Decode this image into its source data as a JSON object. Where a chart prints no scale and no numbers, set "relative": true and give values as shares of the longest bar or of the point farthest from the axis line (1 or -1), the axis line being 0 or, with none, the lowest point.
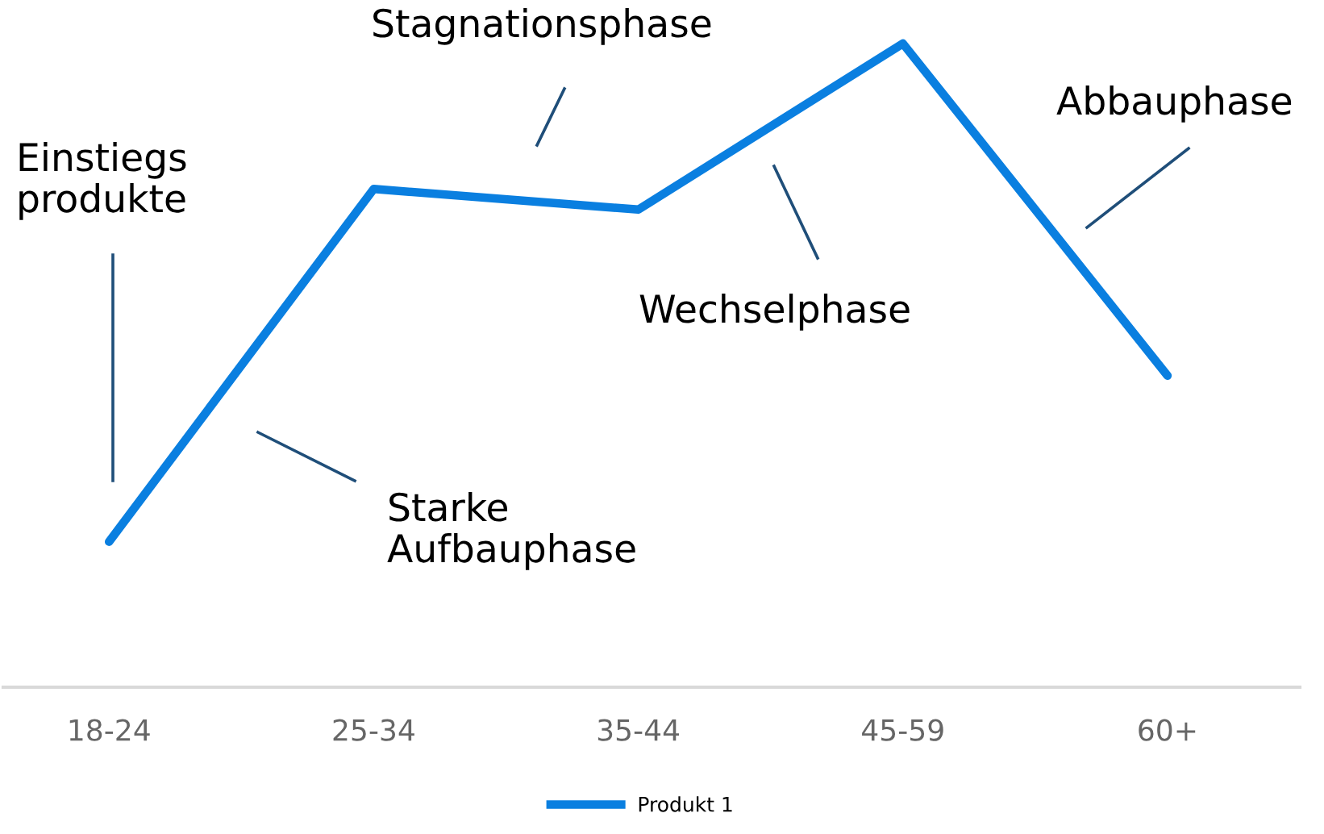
{
  "chart_data": {
    "type": "line",
    "relative": true,
    "categories": [
      "18-24",
      "25-34",
      "35-44",
      "45-59",
      "60+"
    ],
    "series": [
      {
        "name": "Produkt 1",
        "color": "#0a7fe0",
        "values": [
          0.226,
          0.774,
          0.742,
          1,
          0.484
        ]
      }
    ],
    "annotations": [
      "Einstiegs\nprodukte",
      "Starke\nAufbauphase",
      "Stagnationsphase",
      "Wechselphase",
      "Abbauphase"
    ],
    "legend": "bottom",
    "grid": false,
    "marker": "none",
    "line_style": "solid"
  }
}
